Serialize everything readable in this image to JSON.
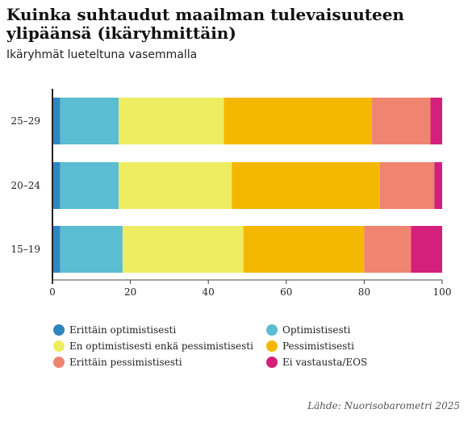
{
  "header": {
    "title": "Kuinka suhtaudut maailman tulevaisuuteen ylipäänsä (ikäryhmittäin)",
    "subtitle": "Ikäryhmät lueteltuna vasemmalla"
  },
  "source": "Lähde: Nuorisobarometri 2025",
  "chart_data": {
    "type": "bar",
    "orientation": "horizontal",
    "stacked": true,
    "categories": [
      "25–29",
      "20–24",
      "15–19"
    ],
    "series": [
      {
        "name": "Erittäin optimistisesti",
        "color": "#2e86c1",
        "values": [
          2,
          2,
          2
        ]
      },
      {
        "name": "Optimistisesti",
        "color": "#5bbdd1",
        "values": [
          15,
          15,
          16
        ]
      },
      {
        "name": "En optimistisesti enkä pessimistisesti",
        "color": "#eeed62",
        "values": [
          27,
          29,
          31
        ]
      },
      {
        "name": "Pessimistisesti",
        "color": "#f5b800",
        "values": [
          38,
          38,
          31
        ]
      },
      {
        "name": "Erittäin pessimistisesti",
        "color": "#ef8471",
        "values": [
          15,
          14,
          12
        ]
      },
      {
        "name": "Ei vastausta/EOS",
        "color": "#d4207a",
        "values": [
          3,
          2,
          8
        ]
      }
    ],
    "xlim": [
      0,
      100
    ],
    "xticks": [
      0,
      20,
      40,
      60,
      80,
      100
    ],
    "grid": false,
    "legend_position": "bottom"
  }
}
